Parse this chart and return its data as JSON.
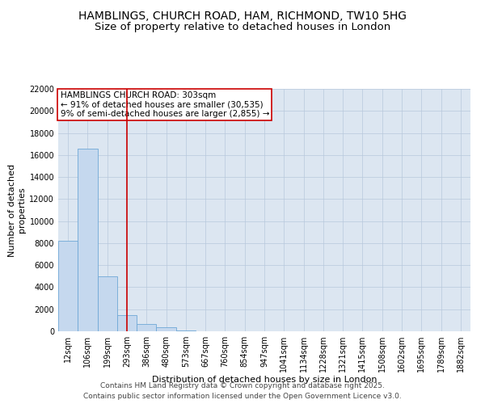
{
  "title_line1": "HAMBLINGS, CHURCH ROAD, HAM, RICHMOND, TW10 5HG",
  "title_line2": "Size of property relative to detached houses in London",
  "xlabel": "Distribution of detached houses by size in London",
  "ylabel": "Number of detached\nproperties",
  "categories": [
    "12sqm",
    "106sqm",
    "199sqm",
    "293sqm",
    "386sqm",
    "480sqm",
    "573sqm",
    "667sqm",
    "760sqm",
    "854sqm",
    "947sqm",
    "1041sqm",
    "1134sqm",
    "1228sqm",
    "1321sqm",
    "1415sqm",
    "1508sqm",
    "1602sqm",
    "1695sqm",
    "1789sqm",
    "1882sqm"
  ],
  "values": [
    8200,
    16600,
    5000,
    1500,
    650,
    350,
    100,
    0,
    0,
    0,
    0,
    0,
    0,
    0,
    0,
    0,
    0,
    0,
    0,
    0,
    0
  ],
  "bar_color": "#c5d8ee",
  "bar_edgecolor": "#6fa8d6",
  "vline_x": 3.0,
  "vline_color": "#cc0000",
  "annotation_text": "HAMBLINGS CHURCH ROAD: 303sqm\n← 91% of detached houses are smaller (30,535)\n9% of semi-detached houses are larger (2,855) →",
  "annotation_box_color": "#ffffff",
  "annotation_box_edgecolor": "#cc0000",
  "background_color": "#dce6f1",
  "ylim": [
    0,
    22000
  ],
  "yticks": [
    0,
    2000,
    4000,
    6000,
    8000,
    10000,
    12000,
    14000,
    16000,
    18000,
    20000,
    22000
  ],
  "footer_line1": "Contains HM Land Registry data © Crown copyright and database right 2025.",
  "footer_line2": "Contains public sector information licensed under the Open Government Licence v3.0.",
  "title_fontsize": 10,
  "title2_fontsize": 9.5,
  "axis_label_fontsize": 8,
  "tick_fontsize": 7,
  "annotation_fontsize": 7.5,
  "footer_fontsize": 6.5
}
